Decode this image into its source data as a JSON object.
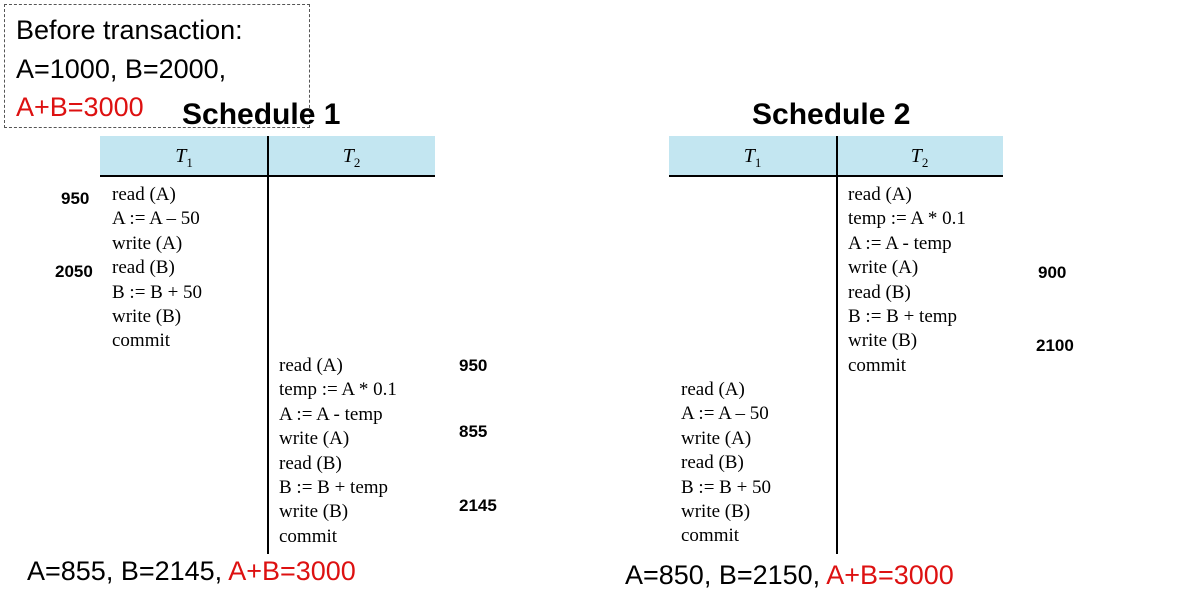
{
  "note": {
    "line1": "Before transaction:",
    "line2": "A=1000,  B=2000,",
    "line3": "A+B=3000"
  },
  "schedule1": {
    "title": "Schedule 1",
    "header": {
      "t1": "T",
      "t1_sub": "1",
      "t2": "T",
      "t2_sub": "2"
    },
    "t1_ops": [
      "read (A)",
      "A := A – 50",
      "write (A)",
      "read (B)",
      "B := B + 50",
      "write (B)",
      "commit"
    ],
    "t2_ops": [
      "read (A)",
      "temp := A * 0.1",
      "A := A - temp",
      "write (A)",
      "read (B)",
      "B := B + temp",
      "write (B)",
      "commit"
    ],
    "values": {
      "t1_a": "950",
      "t1_b": "2050",
      "t2_read_a": "950",
      "t2_write_a": "855",
      "t2_write_b": "2145"
    },
    "result": {
      "ab": "A=855,  B=2145,",
      "sum": "A+B=3000"
    }
  },
  "schedule2": {
    "title": "Schedule 2",
    "header": {
      "t1": "T",
      "t1_sub": "1",
      "t2": "T",
      "t2_sub": "2"
    },
    "t2_ops": [
      "read (A)",
      "temp := A * 0.1",
      "A := A - temp",
      "write (A)",
      "read (B)",
      "B := B + temp",
      "write (B)",
      "commit"
    ],
    "t1_ops": [
      "read (A)",
      "A := A – 50",
      "write (A)",
      "read (B)",
      "B := B + 50",
      "write (B)",
      "commit"
    ],
    "values": {
      "t2_a": "900",
      "t2_b": "2100"
    },
    "result": {
      "ab": "A=850,  B=2150,",
      "sum": "A+B=3000"
    }
  },
  "colors": {
    "header_bg": "#c3e6f1",
    "accent_red": "#dd1111"
  }
}
